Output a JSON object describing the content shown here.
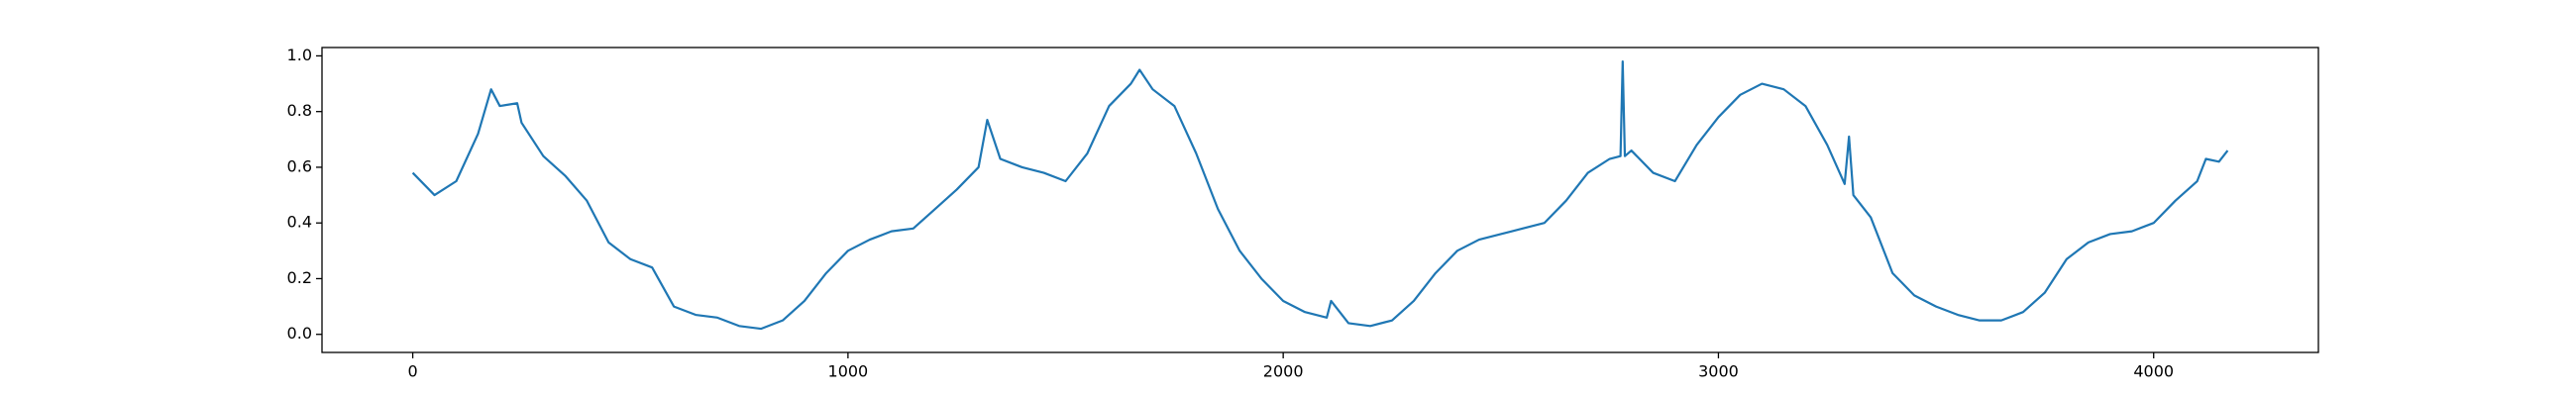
{
  "chart_data": {
    "type": "line",
    "x": [
      0,
      50,
      100,
      150,
      180,
      200,
      240,
      250,
      300,
      350,
      400,
      450,
      500,
      550,
      600,
      650,
      700,
      750,
      800,
      850,
      900,
      950,
      1000,
      1050,
      1100,
      1150,
      1200,
      1250,
      1300,
      1320,
      1350,
      1400,
      1450,
      1500,
      1550,
      1600,
      1650,
      1670,
      1700,
      1750,
      1800,
      1850,
      1900,
      1950,
      2000,
      2050,
      2100,
      2110,
      2150,
      2200,
      2250,
      2300,
      2350,
      2400,
      2450,
      2500,
      2550,
      2600,
      2650,
      2700,
      2750,
      2775,
      2780,
      2785,
      2800,
      2850,
      2900,
      2950,
      3000,
      3050,
      3100,
      3150,
      3200,
      3250,
      3290,
      3300,
      3310,
      3350,
      3400,
      3450,
      3500,
      3550,
      3600,
      3650,
      3700,
      3750,
      3800,
      3850,
      3900,
      3950,
      4000,
      4050,
      4100,
      4120,
      4150,
      4170
    ],
    "series": [
      {
        "color": "#1f77b4",
        "values": [
          0.58,
          0.5,
          0.55,
          0.72,
          0.88,
          0.82,
          0.83,
          0.76,
          0.64,
          0.57,
          0.48,
          0.33,
          0.27,
          0.24,
          0.1,
          0.07,
          0.06,
          0.03,
          0.02,
          0.05,
          0.12,
          0.22,
          0.3,
          0.34,
          0.37,
          0.38,
          0.45,
          0.52,
          0.6,
          0.77,
          0.63,
          0.6,
          0.58,
          0.55,
          0.65,
          0.82,
          0.9,
          0.95,
          0.88,
          0.82,
          0.65,
          0.45,
          0.3,
          0.2,
          0.12,
          0.08,
          0.06,
          0.12,
          0.04,
          0.03,
          0.05,
          0.12,
          0.22,
          0.3,
          0.34,
          0.36,
          0.38,
          0.4,
          0.48,
          0.58,
          0.63,
          0.64,
          0.98,
          0.64,
          0.66,
          0.58,
          0.55,
          0.68,
          0.78,
          0.86,
          0.9,
          0.88,
          0.82,
          0.68,
          0.54,
          0.71,
          0.5,
          0.42,
          0.22,
          0.14,
          0.1,
          0.07,
          0.05,
          0.05,
          0.08,
          0.15,
          0.27,
          0.33,
          0.36,
          0.37,
          0.4,
          0.48,
          0.55,
          0.63,
          0.62,
          0.66
        ]
      }
    ],
    "xlim": [
      -208.5,
      4378.5
    ],
    "ylim": [
      -0.065,
      1.03
    ],
    "xticks": [
      0,
      1000,
      2000,
      3000,
      4000
    ],
    "yticks": [
      {
        "value": 0,
        "label": "0.0"
      },
      0.2,
      0.4,
      0.6,
      0.8,
      {
        "value": 1,
        "label": "1.0"
      }
    ]
  }
}
